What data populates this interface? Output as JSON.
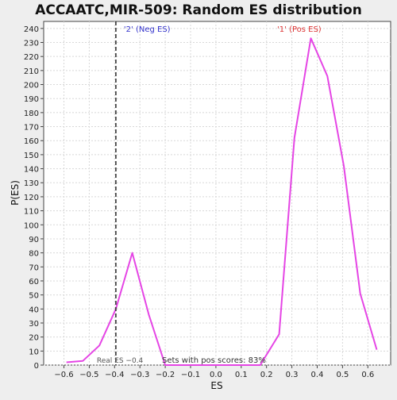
{
  "chart_data": {
    "type": "line",
    "title": "ACCAATC,MIR-509: Random ES distribution",
    "xlabel": "ES",
    "ylabel": "P(ES)",
    "xlim": [
      -0.68,
      0.69
    ],
    "ylim": [
      0,
      245
    ],
    "x_ticks": [
      -0.6,
      -0.5,
      -0.4,
      -0.3,
      -0.2,
      -0.1,
      0.0,
      0.1,
      0.2,
      0.3,
      0.4,
      0.5,
      0.6
    ],
    "x_tick_labels": [
      "−0.6",
      "−0.5",
      "−0.4",
      "−0.3",
      "−0.2",
      "−0.1",
      "0.0",
      "0.1",
      "0.2",
      "0.3",
      "0.4",
      "0.5",
      "0.6"
    ],
    "y_ticks": [
      0,
      10,
      20,
      30,
      40,
      50,
      60,
      70,
      80,
      90,
      100,
      110,
      120,
      130,
      140,
      150,
      160,
      170,
      180,
      190,
      200,
      210,
      220,
      230,
      240
    ],
    "grid": true,
    "series": [
      {
        "color": "#e545e5",
        "x": [
          -0.59,
          -0.525,
          -0.46,
          -0.395,
          -0.33,
          -0.265,
          -0.2,
          0.175,
          0.25,
          0.31,
          0.375,
          0.44,
          0.505,
          0.57,
          0.635
        ],
        "y": [
          2,
          3,
          14,
          40,
          80,
          36,
          0,
          0,
          22,
          162,
          233,
          206,
          142,
          51,
          11
        ]
      }
    ],
    "real_es_line": {
      "x": -0.395,
      "color": "#333333",
      "style": "dashed"
    },
    "annotations": {
      "neg_label": "'2' (Neg ES)",
      "neg_color": "#3333cc",
      "pos_label": "'1' (Pos ES)",
      "pos_color": "#dd3333",
      "real_es_text": "Real ES −0.4",
      "pos_scores_text": "Sets with pos scores: 83%"
    },
    "colors": {
      "background": "#eeeeee",
      "plot_background": "#ffffff",
      "grid": "#d8d8d8",
      "axis": "#444444"
    }
  }
}
